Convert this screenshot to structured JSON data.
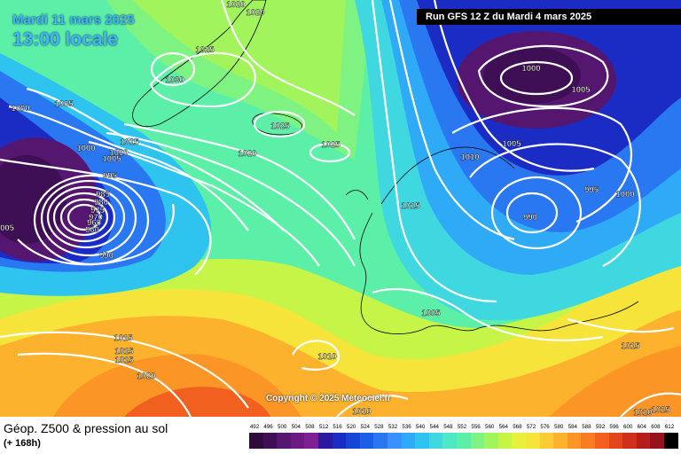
{
  "header": {
    "date": "Mardi 11 mars 2025",
    "time": "13:00 locale",
    "run": "Run GFS 12 Z du Mardi 4 mars 2025"
  },
  "footer": {
    "title": "Géop. Z500 & pression au sol",
    "subtitle": "(+ 168h)",
    "copyright": "Copyright © 2025 Meteociel.fr"
  },
  "scale": {
    "values": [
      "492",
      "496",
      "500",
      "504",
      "508",
      "512",
      "516",
      "520",
      "524",
      "528",
      "532",
      "536",
      "540",
      "544",
      "548",
      "552",
      "556",
      "560",
      "564",
      "568",
      "572",
      "576",
      "580",
      "584",
      "588",
      "592",
      "596",
      "600",
      "604",
      "608",
      "612"
    ],
    "colors": [
      "#2e0b3b",
      "#3f0f55",
      "#55166f",
      "#6a1a80",
      "#7e2093",
      "#2b1aa0",
      "#1a2cc4",
      "#1546d6",
      "#1b5ee8",
      "#2a77f2",
      "#3a90ff",
      "#2eaaf7",
      "#2fc3f0",
      "#3fd8e0",
      "#4ee8c6",
      "#5cefa8",
      "#7ef382",
      "#a2f45c",
      "#c6f548",
      "#e6f13c",
      "#f7e43a",
      "#fbcd34",
      "#fcb22c",
      "#fb9626",
      "#f97c22",
      "#f1601e",
      "#e4461c",
      "#cf2f1b",
      "#b41d1c",
      "#96121d",
      "#000000"
    ]
  },
  "isobars": [
    {
      "label": "1020",
      "anchor": "top-center-a"
    },
    {
      "label": "1020",
      "anchor": "top-center-b"
    },
    {
      "label": "1025",
      "anchor": "greenland-n"
    },
    {
      "label": "1030",
      "anchor": "greenland-c"
    },
    {
      "label": "1000",
      "anchor": "west-edge"
    },
    {
      "label": "1005",
      "anchor": "labrador"
    },
    {
      "label": "1015",
      "anchor": "davis-a"
    },
    {
      "label": "1010",
      "anchor": "davis-b"
    },
    {
      "label": "1005",
      "anchor": "davis-c"
    },
    {
      "label": "1000",
      "anchor": "davis-d"
    },
    {
      "label": "995",
      "anchor": "davis-e"
    },
    {
      "label": "985",
      "anchor": "low-1"
    },
    {
      "label": "980",
      "anchor": "low-2"
    },
    {
      "label": "975",
      "anchor": "low-3"
    },
    {
      "label": "970",
      "anchor": "low-4"
    },
    {
      "label": "965",
      "anchor": "low-5"
    },
    {
      "label": "960",
      "anchor": "low-6"
    },
    {
      "label": "990",
      "anchor": "low-s"
    },
    {
      "label": "005",
      "anchor": "west-edge-b"
    },
    {
      "label": "1025",
      "anchor": "iceland"
    },
    {
      "label": "1025",
      "anchor": "north-atl"
    },
    {
      "label": "1020",
      "anchor": "mid-atl"
    },
    {
      "label": "1000",
      "anchor": "scand-low"
    },
    {
      "label": "1005",
      "anchor": "scand-ne"
    },
    {
      "label": "1005",
      "anchor": "norway"
    },
    {
      "label": "1010",
      "anchor": "north-sea"
    },
    {
      "label": "995",
      "anchor": "baltic"
    },
    {
      "label": "1000",
      "anchor": "russia"
    },
    {
      "label": "990",
      "anchor": "poland"
    },
    {
      "label": "1015",
      "anchor": "uk"
    },
    {
      "label": "1005",
      "anchor": "alps"
    },
    {
      "label": "1010",
      "anchor": "iberia"
    },
    {
      "label": "1015",
      "anchor": "azores-a"
    },
    {
      "label": "1015",
      "anchor": "azores-b"
    },
    {
      "label": "1015",
      "anchor": "azores-c"
    },
    {
      "label": "1020",
      "anchor": "canaries"
    },
    {
      "label": "1015",
      "anchor": "turkey"
    },
    {
      "label": "1010",
      "anchor": "sahara"
    },
    {
      "label": "1010",
      "anchor": "egypt-a"
    },
    {
      "label": "1015",
      "anchor": "egypt-b"
    }
  ]
}
